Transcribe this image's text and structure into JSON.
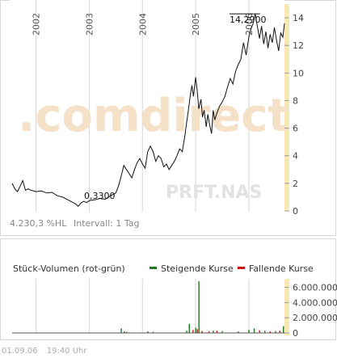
{
  "price_panel": {
    "watermark": ".comdirect",
    "symbol_watermark": "PRFT.NAS",
    "performance": "4.230,3 %HL",
    "interval_label": "Intervall: 1 Tag",
    "high_label": "14,2900",
    "low_label": "0,3300"
  },
  "volume_panel": {
    "title": "Stück-Volumen (rot-grün)",
    "legend": [
      {
        "label": "Steigende Kurse",
        "color": "#1a7a1a"
      },
      {
        "label": "Fallende Kurse",
        "color": "#cc1010"
      }
    ]
  },
  "footer": {
    "date": "01.09.06",
    "time": "19:40 Uhr"
  },
  "colors": {
    "price_line": "#111111",
    "axis_band": "#f9e7b4",
    "grid": "#d6d6d6",
    "watermark": "#f5e0c8",
    "up": "#1a7a1a",
    "down": "#cc1010"
  },
  "chart_data": [
    {
      "type": "line",
      "x_ticks": [
        "2002",
        "2003",
        "2004",
        "2005",
        "2006"
      ],
      "y_ticks": [
        "0",
        "2",
        "4",
        "6",
        "8",
        "10",
        "12",
        "14"
      ],
      "ylim": [
        0,
        15
      ],
      "xlim": [
        2001.55,
        2006.67
      ],
      "grid": true,
      "points": [
        [
          2001.55,
          2.0
        ],
        [
          2001.6,
          1.6
        ],
        [
          2001.65,
          1.4
        ],
        [
          2001.7,
          1.8
        ],
        [
          2001.75,
          2.2
        ],
        [
          2001.8,
          1.5
        ],
        [
          2001.85,
          1.6
        ],
        [
          2001.9,
          1.5
        ],
        [
          2002.0,
          1.4
        ],
        [
          2002.1,
          1.45
        ],
        [
          2002.2,
          1.3
        ],
        [
          2002.3,
          1.35
        ],
        [
          2002.4,
          1.1
        ],
        [
          2002.5,
          1.0
        ],
        [
          2002.6,
          0.8
        ],
        [
          2002.7,
          0.6
        ],
        [
          2002.75,
          0.5
        ],
        [
          2002.79,
          0.33
        ],
        [
          2002.85,
          0.6
        ],
        [
          2002.9,
          0.7
        ],
        [
          2002.95,
          0.6
        ],
        [
          2003.0,
          0.75
        ],
        [
          2003.1,
          0.8
        ],
        [
          2003.2,
          0.9
        ],
        [
          2003.3,
          0.85
        ],
        [
          2003.4,
          1.1
        ],
        [
          2003.5,
          1.3
        ],
        [
          2003.55,
          1.8
        ],
        [
          2003.6,
          2.5
        ],
        [
          2003.65,
          3.3
        ],
        [
          2003.7,
          3.0
        ],
        [
          2003.75,
          2.7
        ],
        [
          2003.8,
          2.4
        ],
        [
          2003.85,
          3.0
        ],
        [
          2003.9,
          3.5
        ],
        [
          2003.95,
          3.8
        ],
        [
          2004.0,
          3.4
        ],
        [
          2004.05,
          3.1
        ],
        [
          2004.1,
          4.3
        ],
        [
          2004.15,
          4.7
        ],
        [
          2004.2,
          4.3
        ],
        [
          2004.25,
          3.6
        ],
        [
          2004.3,
          4.0
        ],
        [
          2004.35,
          3.8
        ],
        [
          2004.4,
          3.2
        ],
        [
          2004.45,
          3.4
        ],
        [
          2004.5,
          3.0
        ],
        [
          2004.55,
          3.3
        ],
        [
          2004.6,
          3.6
        ],
        [
          2004.65,
          4.0
        ],
        [
          2004.7,
          4.5
        ],
        [
          2004.75,
          4.3
        ],
        [
          2004.8,
          5.5
        ],
        [
          2004.83,
          6.4
        ],
        [
          2004.86,
          7.2
        ],
        [
          2004.9,
          8.4
        ],
        [
          2004.93,
          9.1
        ],
        [
          2004.96,
          8.3
        ],
        [
          2005.0,
          9.7
        ],
        [
          2005.03,
          8.7
        ],
        [
          2005.06,
          7.4
        ],
        [
          2005.1,
          8.1
        ],
        [
          2005.13,
          6.8
        ],
        [
          2005.16,
          7.3
        ],
        [
          2005.2,
          6.1
        ],
        [
          2005.23,
          7.0
        ],
        [
          2005.26,
          6.3
        ],
        [
          2005.3,
          5.6
        ],
        [
          2005.33,
          7.3
        ],
        [
          2005.36,
          6.6
        ],
        [
          2005.4,
          7.1
        ],
        [
          2005.45,
          7.6
        ],
        [
          2005.5,
          7.9
        ],
        [
          2005.55,
          8.3
        ],
        [
          2005.6,
          9.0
        ],
        [
          2005.65,
          9.6
        ],
        [
          2005.7,
          9.2
        ],
        [
          2005.75,
          10.1
        ],
        [
          2005.8,
          10.6
        ],
        [
          2005.85,
          11.0
        ],
        [
          2005.9,
          12.2
        ],
        [
          2005.95,
          11.3
        ],
        [
          2006.0,
          12.6
        ],
        [
          2006.04,
          13.2
        ],
        [
          2006.08,
          13.6
        ],
        [
          2006.12,
          14.29
        ],
        [
          2006.16,
          13.4
        ],
        [
          2006.2,
          12.5
        ],
        [
          2006.24,
          13.4
        ],
        [
          2006.28,
          12.1
        ],
        [
          2006.32,
          13.0
        ],
        [
          2006.36,
          11.8
        ],
        [
          2006.4,
          12.8
        ],
        [
          2006.44,
          12.2
        ],
        [
          2006.48,
          13.3
        ],
        [
          2006.52,
          12.4
        ],
        [
          2006.56,
          11.6
        ],
        [
          2006.6,
          12.9
        ],
        [
          2006.64,
          12.6
        ],
        [
          2006.67,
          13.6
        ]
      ]
    },
    {
      "type": "bar",
      "y_ticks": [
        "0",
        "2.000.000",
        "4.000.000",
        "6.000.000"
      ],
      "ylim": [
        0,
        6600000
      ],
      "xlim": [
        2001.55,
        2006.67
      ],
      "series": [
        {
          "name": "Steigende Kurse",
          "values": [
            [
              2003.6,
              600000
            ],
            [
              2003.7,
              150000
            ],
            [
              2004.1,
              220000
            ],
            [
              2004.83,
              300000
            ],
            [
              2004.88,
              1200000
            ],
            [
              2005.0,
              700000
            ],
            [
              2005.06,
              6800000
            ],
            [
              2005.33,
              300000
            ],
            [
              2005.5,
              250000
            ],
            [
              2005.8,
              200000
            ],
            [
              2006.0,
              400000
            ],
            [
              2006.1,
              600000
            ],
            [
              2006.3,
              300000
            ],
            [
              2006.5,
              250000
            ],
            [
              2006.65,
              900000
            ]
          ]
        },
        {
          "name": "Fallende Kurse",
          "values": [
            [
              2003.66,
              200000
            ],
            [
              2004.2,
              150000
            ],
            [
              2004.95,
              400000
            ],
            [
              2005.03,
              500000
            ],
            [
              2005.12,
              250000
            ],
            [
              2005.25,
              200000
            ],
            [
              2005.4,
              300000
            ],
            [
              2006.2,
              350000
            ],
            [
              2006.4,
              200000
            ],
            [
              2006.58,
              300000
            ]
          ]
        }
      ]
    }
  ]
}
